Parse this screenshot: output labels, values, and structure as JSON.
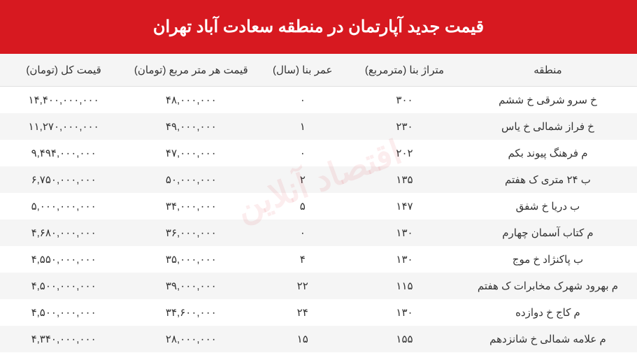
{
  "title": "قیمت جدید آپارتمان در منطقه سعادت آباد تهران",
  "header_bg": "#d71920",
  "header_fg": "#ffffff",
  "row_alt_bg": "#f5f5f5",
  "text_color": "#333333",
  "title_fontsize": 24,
  "cell_fontsize": 15,
  "columns": [
    {
      "key": "region",
      "label": "منطقه"
    },
    {
      "key": "area",
      "label": "متراژ بنا (مترمربع)"
    },
    {
      "key": "age",
      "label": "عمر بنا (سال)"
    },
    {
      "key": "ppm",
      "label": "قیمت هر متر مربع (تومان)"
    },
    {
      "key": "total",
      "label": "قیمت کل (تومان)"
    }
  ],
  "rows": [
    {
      "region": "خ سرو شرقی خ ششم",
      "area": "۳۰۰",
      "age": "۰",
      "ppm": "۴۸,۰۰۰,۰۰۰",
      "total": "۱۴,۴۰۰,۰۰۰,۰۰۰"
    },
    {
      "region": "خ فراز شمالی خ یاس",
      "area": "۲۳۰",
      "age": "۱",
      "ppm": "۴۹,۰۰۰,۰۰۰",
      "total": "۱۱,۲۷۰,۰۰۰,۰۰۰"
    },
    {
      "region": "م فرهنگ پیوند بکم",
      "area": "۲۰۲",
      "age": "۰",
      "ppm": "۴۷,۰۰۰,۰۰۰",
      "total": "۹,۴۹۴,۰۰۰,۰۰۰"
    },
    {
      "region": "ب ۲۴ متری ک هفتم",
      "area": "۱۳۵",
      "age": "۲",
      "ppm": "۵۰,۰۰۰,۰۰۰",
      "total": "۶,۷۵۰,۰۰۰,۰۰۰"
    },
    {
      "region": "ب دریا خ شفق",
      "area": "۱۴۷",
      "age": "۵",
      "ppm": "۳۴,۰۰۰,۰۰۰",
      "total": "۵,۰۰۰,۰۰۰,۰۰۰"
    },
    {
      "region": "م کتاب آسمان چهارم",
      "area": "۱۳۰",
      "age": "۰",
      "ppm": "۳۶,۰۰۰,۰۰۰",
      "total": "۴,۶۸۰,۰۰۰,۰۰۰"
    },
    {
      "region": "ب پاکنژاد خ موج",
      "area": "۱۳۰",
      "age": "۴",
      "ppm": "۳۵,۰۰۰,۰۰۰",
      "total": "۴,۵۵۰,۰۰۰,۰۰۰"
    },
    {
      "region": "م بهرود شهرک مخابرات ک هفتم",
      "area": "۱۱۵",
      "age": "۲۲",
      "ppm": "۳۹,۰۰۰,۰۰۰",
      "total": "۴,۵۰۰,۰۰۰,۰۰۰"
    },
    {
      "region": "م کاج خ دوازده",
      "area": "۱۳۰",
      "age": "۲۴",
      "ppm": "۳۴,۶۰۰,۰۰۰",
      "total": "۴,۵۰۰,۰۰۰,۰۰۰"
    },
    {
      "region": "م علامه شمالی خ شانزدهم",
      "area": "۱۵۵",
      "age": "۱۵",
      "ppm": "۲۸,۰۰۰,۰۰۰",
      "total": "۴,۳۴۰,۰۰۰,۰۰۰"
    }
  ],
  "watermark": "اقتصاد آنلاین"
}
